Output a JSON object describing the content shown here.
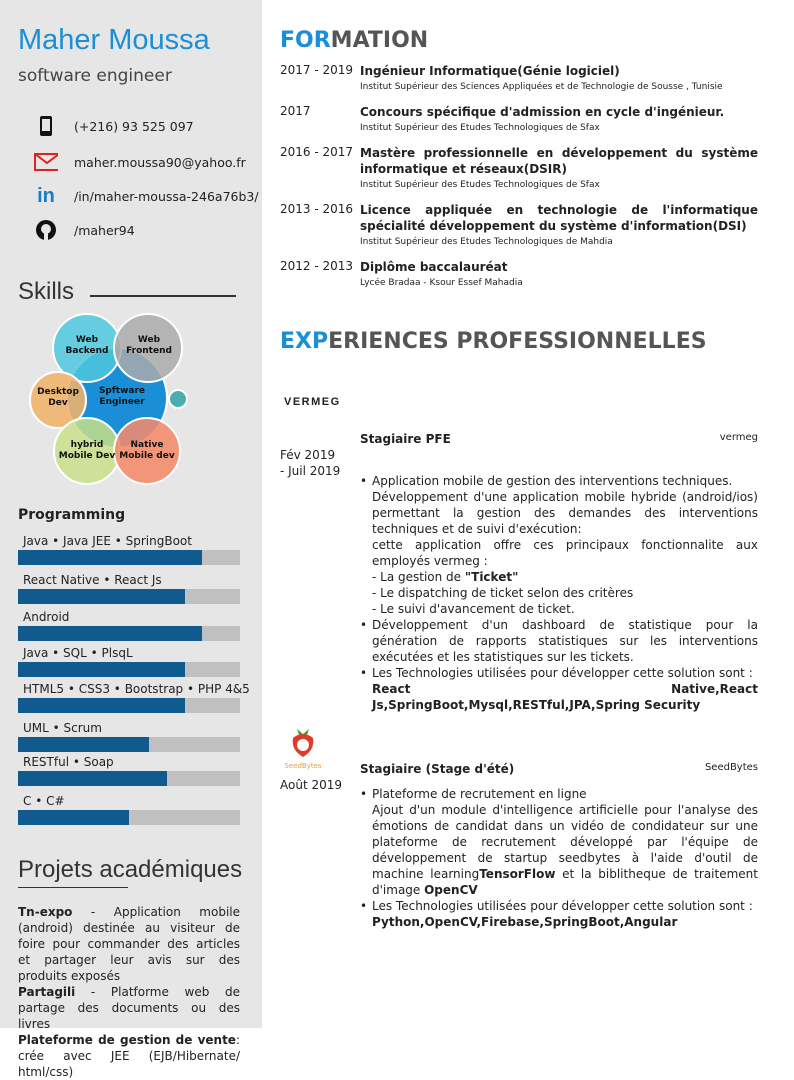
{
  "profile": {
    "name": "Maher Moussa",
    "role": "software engineer"
  },
  "contacts": [
    {
      "icon": "phone-icon",
      "text": "(+216) 93 525 097"
    },
    {
      "icon": "email-icon",
      "text": "maher.moussa90@yahoo.fr"
    },
    {
      "icon": "linkedin-icon",
      "text": "/in/maher-moussa-246a76b3/"
    },
    {
      "icon": "github-icon",
      "text": "/maher94"
    }
  ],
  "skills": {
    "title": "Skills",
    "venn": {
      "center": "Spftware Engineer",
      "web_backend": "Web Backend",
      "web_frontend": "Web Frontend",
      "desktop": "Desktop Dev",
      "hybrid": "hybrid Mobile Dev",
      "native": "Native Mobile dev"
    }
  },
  "programming": {
    "title": "Programming",
    "items": [
      {
        "label": "Java  •  Java JEE •  SpringBoot",
        "level": 0.83
      },
      {
        "label": "React Native  •  React Js",
        "level": 0.75
      },
      {
        "label": "Android",
        "level": 0.83
      },
      {
        "label": "Java  •  SQL  •  PlsqL",
        "level": 0.75
      },
      {
        "label": "HTML5 • CSS3  •  Bootstrap  •  PHP 4&5",
        "level": 0.75
      },
      {
        "label": "UML  •  Scrum",
        "level": 0.59
      },
      {
        "label": "RESTful  •  Soap",
        "level": 0.67
      },
      {
        "label": "C  •  C#",
        "level": 0.5
      }
    ]
  },
  "projects": {
    "title": "Projets académiques",
    "p1_name": "Tn-expo",
    "p1_text": " - Application mobile (android) destinée au visiteur de foire pour commander des articles et partager leur avis sur des produits exposés",
    "p2_name": "Partagili",
    "p2_text": " - Platforme web de partage des documents ou des livres",
    "p3_name": "Plateforme de gestion de vente",
    "p3_text": ": crée avec JEE (EJB/Hibernate/ html/css)"
  },
  "formation": {
    "title_accent": "FOR",
    "title_rest": "MATION",
    "items": [
      {
        "years": "2017 - 2019",
        "title": "Ingénieur Informatique(Génie logiciel)",
        "school": "Institut Supérieur des Sciences Appliquées et de Technologie de Sousse , Tunisie"
      },
      {
        "years": "2017",
        "title": "Concours spécifique d'admission en cycle d'ingénieur.",
        "school": "Institut Supérieur des Etudes Technologiques de Sfax"
      },
      {
        "years": "2016 - 2017",
        "title": "Mastère professionnelle en développement du système informatique et réseaux(DSIR)",
        "school": "Institut Supérieur des Etudes Technologiques de Sfax"
      },
      {
        "years": "2013 - 2016",
        "title": "Licence appliquée en technologie de l'informatique spécialité développement du système d'information(DSI)",
        "school": "Institut Supérieur des Etudes Technologiques de Mahdia"
      },
      {
        "years": "2012 - 2013",
        "title": "Diplôme baccalauréat",
        "school": "Lycée Bradaa - Ksour Essef Mahadia"
      }
    ]
  },
  "experience": {
    "title_accent": "EXP",
    "title_rest": "ERIENCES PROFESSIONNELLES",
    "job1": {
      "logo": "VERMEG",
      "title": "Stagiaire PFE",
      "company": "vermeg",
      "date1": "Fév 2019",
      "date2": "- Juil 2019",
      "b1a": "Application mobile de gestion des interventions techniques.",
      "b1b": "Développement d'une application mobile hybride (android/ios) permettant la gestion des demandes des interventions techniques et de suivi d'exécution:",
      "b1c": "cette application offre ces principaux fonctionnalite aux employés vermeg :",
      "b1d": "- La gestion de ",
      "b1d_bold": "\"Ticket\"",
      "b1e": "- Le dispatching de ticket selon des critères",
      "b1f": "- Le suivi d'avancement de ticket.",
      "b2": "Développement d'un dashboard de statistique pour la génération de rapports statistiques sur les interventions exécutées et les statistiques sur les tickets.",
      "b3": "Les Technologies utilisées pour développer cette solution sont :",
      "b3_bold": "React Native,React Js,SpringBoot,Mysql,RESTful,JPA,Spring Security"
    },
    "job2": {
      "logo": "SeedBytes",
      "title": "Stagiaire (Stage d'été)",
      "company": "SeedBytes",
      "date1": "Août 2019",
      "b1a": "Plateforme de recrutement en ligne",
      "b1b": "Ajout d'un module d'intelligence artificielle pour l'analyse des émotions de candidat dans un vidéo de condidateur sur une plateforme de recrutement développé par l'équipe de développement de startup seedbytes à l'aide d'outil de machine learning",
      "b1b_bold": "TensorFlow",
      "b1c": "et la biblitheque de traitement d'image ",
      "b1c_bold": "OpenCV",
      "b2": "Les Technologies utilisées pour développer cette solution sont :",
      "b2_bold": "Python,OpenCV,Firebase,SpringBoot,Angular"
    }
  },
  "colors": {
    "accent": "#1a8fd8",
    "bar_fill": "#105a8d",
    "bar_track": "#c0c0c0",
    "sidebar": "#e6e6e6"
  }
}
